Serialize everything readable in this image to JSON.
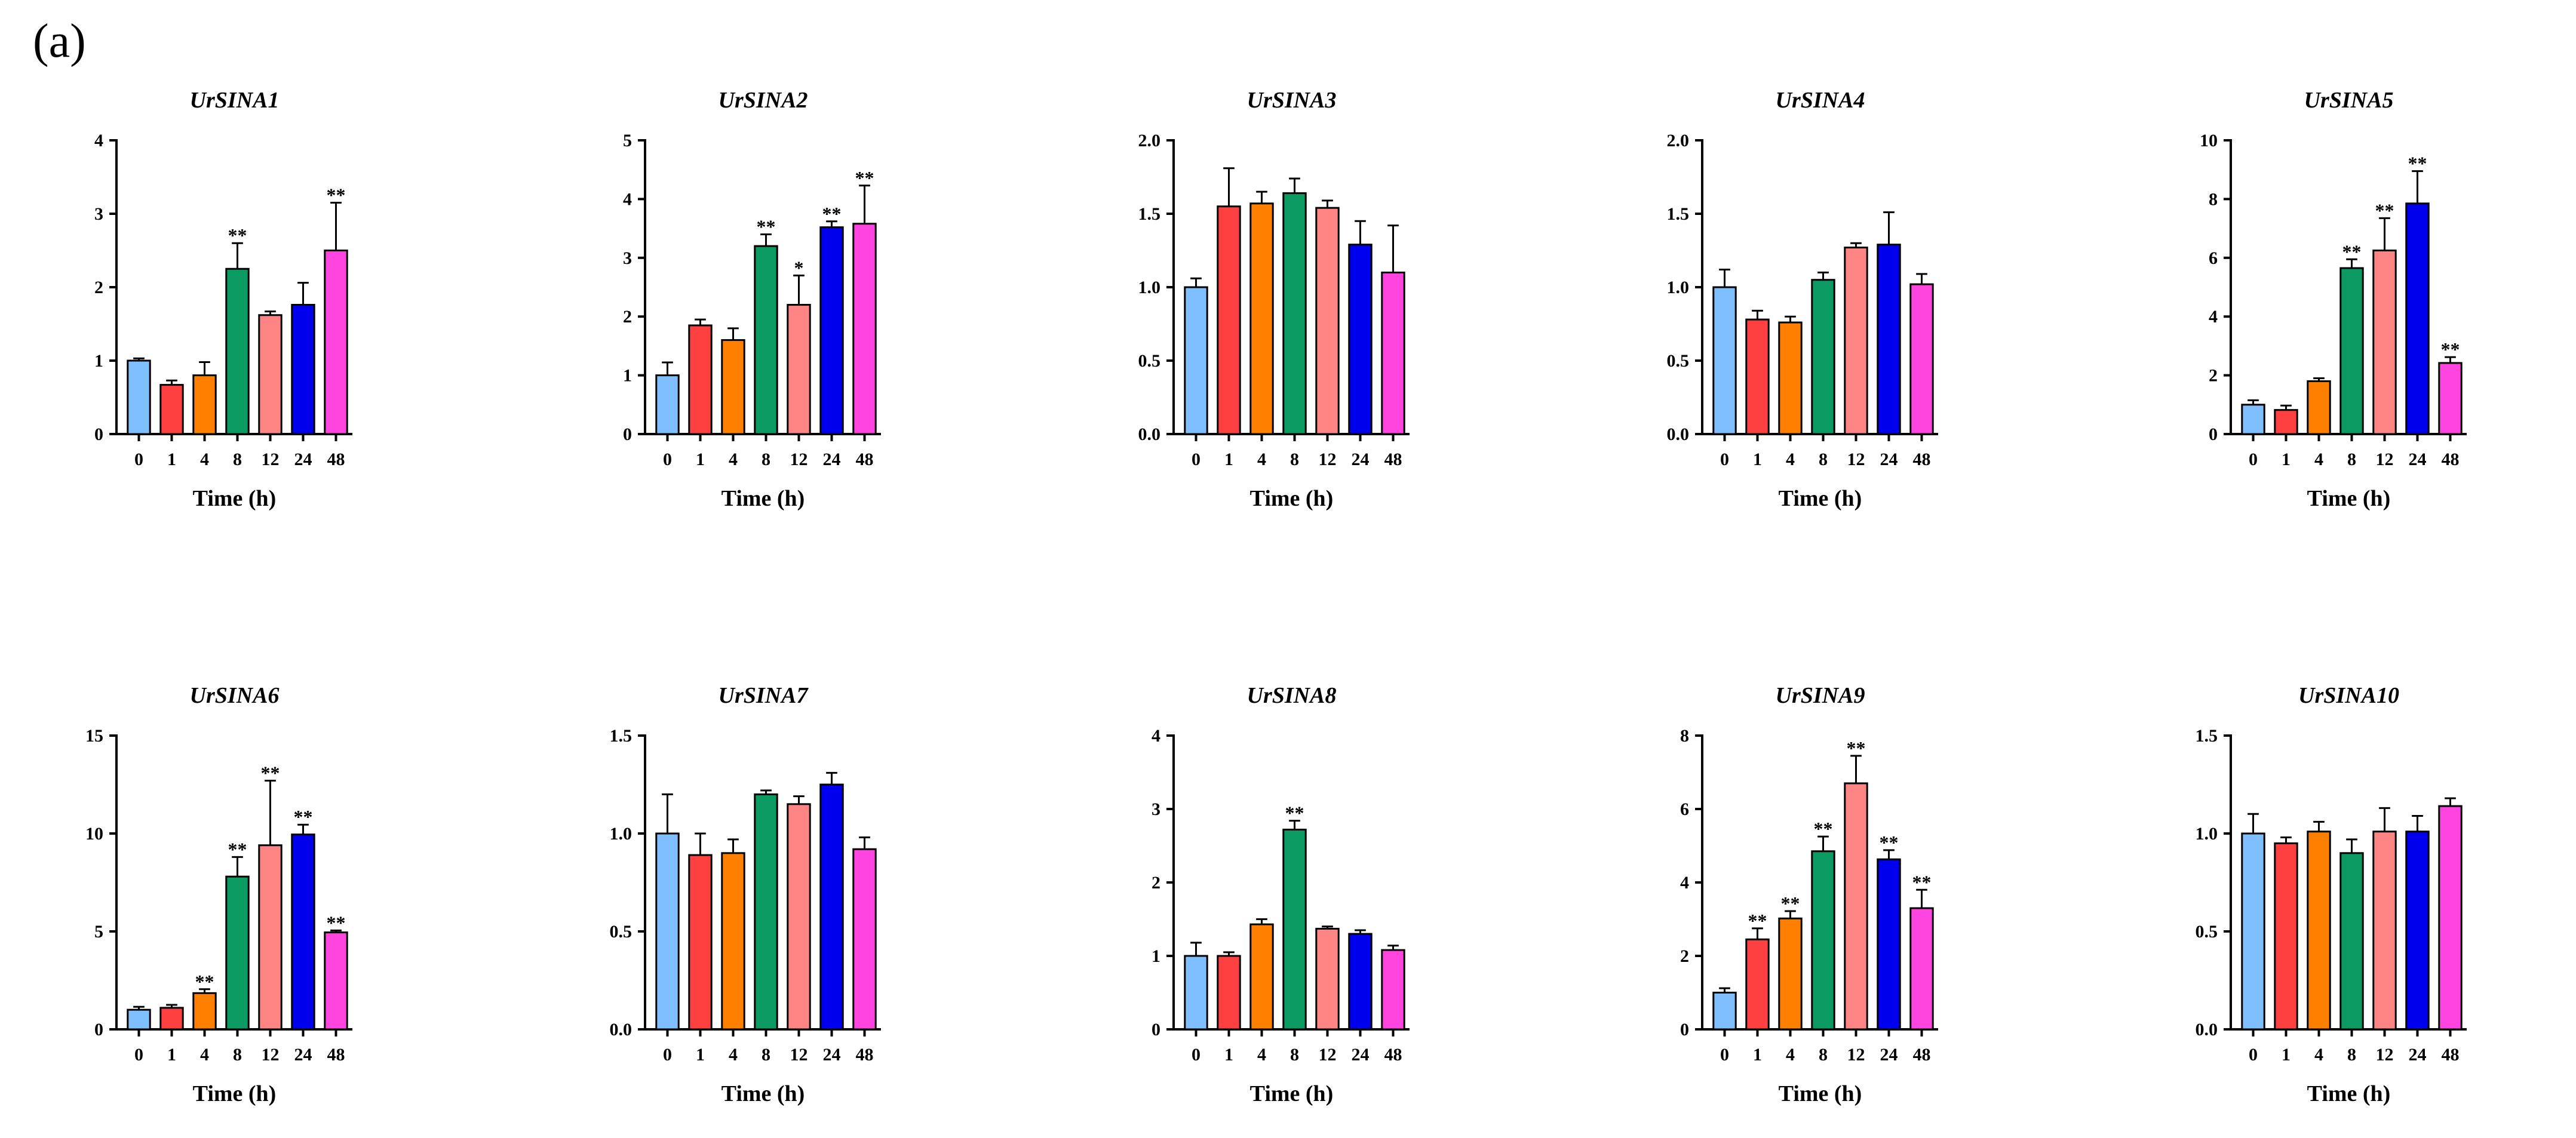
{
  "figure": {
    "panel_label": "(a)"
  },
  "chart_data": [
    {
      "type": "bar",
      "title": "UrSINA1",
      "xlabel": "Time (h)",
      "ylabel": "",
      "categories": [
        "0",
        "1",
        "4",
        "8",
        "12",
        "24",
        "48"
      ],
      "values": [
        1.0,
        0.67,
        0.8,
        2.25,
        1.62,
        1.76,
        2.5
      ],
      "errors": [
        0.03,
        0.06,
        0.18,
        0.35,
        0.05,
        0.3,
        0.65
      ],
      "significance": [
        "",
        "",
        "",
        "**",
        "",
        "",
        "**"
      ],
      "ylim": [
        0,
        4
      ],
      "yticks": [
        "0",
        "1",
        "2",
        "3",
        "4"
      ]
    },
    {
      "type": "bar",
      "title": "UrSINA2",
      "xlabel": "Time (h)",
      "ylabel": "",
      "categories": [
        "0",
        "1",
        "4",
        "8",
        "12",
        "24",
        "48"
      ],
      "values": [
        1.0,
        1.85,
        1.6,
        3.2,
        2.2,
        3.52,
        3.58
      ],
      "errors": [
        0.22,
        0.1,
        0.2,
        0.2,
        0.5,
        0.1,
        0.65
      ],
      "significance": [
        "",
        "",
        "",
        "**",
        "*",
        "**",
        "**"
      ],
      "ylim": [
        0,
        5
      ],
      "yticks": [
        "0",
        "1",
        "2",
        "3",
        "4",
        "5"
      ]
    },
    {
      "type": "bar",
      "title": "UrSINA3",
      "xlabel": "Time (h)",
      "ylabel": "",
      "categories": [
        "0",
        "1",
        "4",
        "8",
        "12",
        "24",
        "48"
      ],
      "values": [
        1.0,
        1.55,
        1.57,
        1.64,
        1.54,
        1.29,
        1.1
      ],
      "errors": [
        0.06,
        0.26,
        0.08,
        0.1,
        0.05,
        0.16,
        0.32
      ],
      "significance": [
        "",
        "",
        "",
        "",
        "",
        "",
        ""
      ],
      "ylim": [
        0,
        2
      ],
      "yticks": [
        "0.0",
        "0.5",
        "1.0",
        "1.5",
        "2.0"
      ]
    },
    {
      "type": "bar",
      "title": "UrSINA4",
      "xlabel": "Time (h)",
      "ylabel": "",
      "categories": [
        "0",
        "1",
        "4",
        "8",
        "12",
        "24",
        "48"
      ],
      "values": [
        1.0,
        0.78,
        0.76,
        1.05,
        1.27,
        1.29,
        1.02
      ],
      "errors": [
        0.12,
        0.06,
        0.04,
        0.05,
        0.03,
        0.22,
        0.07
      ],
      "significance": [
        "",
        "",
        "",
        "",
        "",
        "",
        ""
      ],
      "ylim": [
        0,
        2
      ],
      "yticks": [
        "0.0",
        "0.5",
        "1.0",
        "1.5",
        "2.0"
      ]
    },
    {
      "type": "bar",
      "title": "UrSINA5",
      "xlabel": "Time (h)",
      "ylabel": "",
      "categories": [
        "0",
        "1",
        "4",
        "8",
        "12",
        "24",
        "48"
      ],
      "values": [
        1.0,
        0.82,
        1.8,
        5.65,
        6.25,
        7.85,
        2.42
      ],
      "errors": [
        0.15,
        0.15,
        0.1,
        0.3,
        1.1,
        1.1,
        0.2
      ],
      "significance": [
        "",
        "",
        "",
        "**",
        "**",
        "**",
        "**"
      ],
      "ylim": [
        0,
        10
      ],
      "yticks": [
        "0",
        "2",
        "4",
        "6",
        "8",
        "10"
      ]
    },
    {
      "type": "bar",
      "title": "UrSINA6",
      "xlabel": "Time (h)",
      "ylabel": "",
      "categories": [
        "0",
        "1",
        "4",
        "8",
        "12",
        "24",
        "48"
      ],
      "values": [
        1.0,
        1.1,
        1.85,
        7.8,
        9.4,
        9.95,
        4.95
      ],
      "errors": [
        0.15,
        0.15,
        0.2,
        1.0,
        3.3,
        0.5,
        0.1
      ],
      "significance": [
        "",
        "",
        "**",
        "**",
        "**",
        "**",
        "**"
      ],
      "ylim": [
        0,
        15
      ],
      "yticks": [
        "0",
        "5",
        "10",
        "15"
      ]
    },
    {
      "type": "bar",
      "title": "UrSINA7",
      "xlabel": "Time (h)",
      "ylabel": "",
      "categories": [
        "0",
        "1",
        "4",
        "8",
        "12",
        "24",
        "48"
      ],
      "values": [
        1.0,
        0.89,
        0.9,
        1.2,
        1.15,
        1.25,
        0.92
      ],
      "errors": [
        0.2,
        0.11,
        0.07,
        0.02,
        0.04,
        0.06,
        0.06
      ],
      "significance": [
        "",
        "",
        "",
        "",
        "",
        "",
        ""
      ],
      "ylim": [
        0,
        1.5
      ],
      "yticks": [
        "0.0",
        "0.5",
        "1.0",
        "1.5"
      ]
    },
    {
      "type": "bar",
      "title": "UrSINA8",
      "xlabel": "Time (h)",
      "ylabel": "",
      "categories": [
        "0",
        "1",
        "4",
        "8",
        "12",
        "24",
        "48"
      ],
      "values": [
        1.0,
        1.0,
        1.43,
        2.72,
        1.37,
        1.3,
        1.08
      ],
      "errors": [
        0.18,
        0.05,
        0.07,
        0.12,
        0.03,
        0.05,
        0.06
      ],
      "significance": [
        "",
        "",
        "",
        "**",
        "",
        "",
        ""
      ],
      "ylim": [
        0,
        4
      ],
      "yticks": [
        "0",
        "1",
        "2",
        "3",
        "4"
      ]
    },
    {
      "type": "bar",
      "title": "UrSINA9",
      "xlabel": "Time (h)",
      "ylabel": "",
      "categories": [
        "0",
        "1",
        "4",
        "8",
        "12",
        "24",
        "48"
      ],
      "values": [
        1.0,
        2.45,
        3.02,
        4.85,
        6.7,
        4.63,
        3.3
      ],
      "errors": [
        0.12,
        0.3,
        0.2,
        0.4,
        0.75,
        0.25,
        0.5
      ],
      "significance": [
        "",
        "**",
        "**",
        "**",
        "**",
        "**",
        "**"
      ],
      "ylim": [
        0,
        8
      ],
      "yticks": [
        "0",
        "2",
        "4",
        "6",
        "8"
      ]
    },
    {
      "type": "bar",
      "title": "UrSINA10",
      "xlabel": "Time (h)",
      "ylabel": "",
      "categories": [
        "0",
        "1",
        "4",
        "8",
        "12",
        "24",
        "48"
      ],
      "values": [
        1.0,
        0.95,
        1.01,
        0.9,
        1.01,
        1.01,
        1.14
      ],
      "errors": [
        0.1,
        0.03,
        0.05,
        0.07,
        0.12,
        0.08,
        0.04
      ],
      "significance": [
        "",
        "",
        "",
        "",
        "",
        "",
        ""
      ],
      "ylim": [
        0,
        1.5
      ],
      "yticks": [
        "0.0",
        "0.5",
        "1.0",
        "1.5"
      ]
    }
  ],
  "colors": {
    "bars": [
      "#7fbfff",
      "#ff4040",
      "#ff8000",
      "#0a9a62",
      "#ff8585",
      "#0000ee",
      "#ff44e0"
    ],
    "axis": "#000000"
  }
}
